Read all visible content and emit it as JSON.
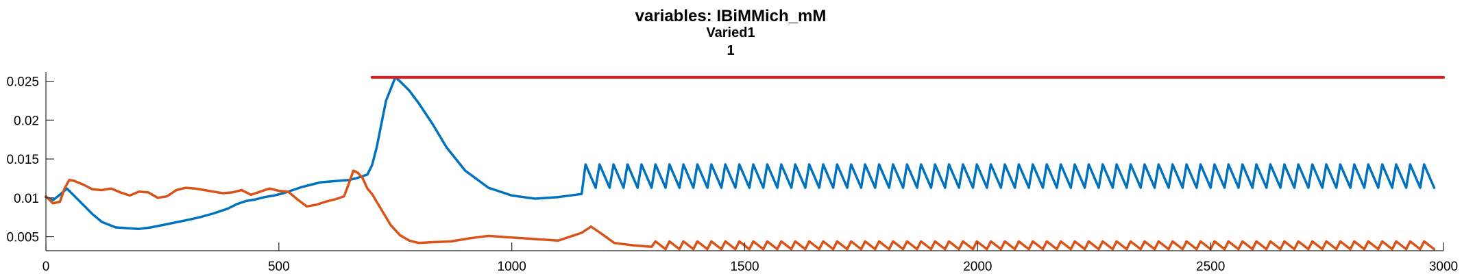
{
  "chart_data": {
    "type": "line",
    "title": "variables: IBiMMich_mM",
    "subtitle_lines": [
      "Varied1",
      "1"
    ],
    "xlabel": "",
    "ylabel": "",
    "xlim": [
      0,
      3000
    ],
    "ylim": [
      0.0032,
      0.0262
    ],
    "x_ticks": [
      0,
      500,
      1000,
      1500,
      2000,
      2500,
      3000
    ],
    "x_tick_labels": [
      "0",
      "500",
      "1000",
      "1500",
      "2000",
      "2500",
      "3000"
    ],
    "y_ticks": [
      0.005,
      0.01,
      0.015,
      0.02,
      0.025
    ],
    "y_tick_labels": [
      "0.005",
      "0.01",
      "0.015",
      "0.02",
      "0.025"
    ],
    "grid": false,
    "legend": "none",
    "series": [
      {
        "color": "#0072BD",
        "x": [
          0,
          15,
          30,
          45,
          60,
          80,
          100,
          120,
          150,
          175,
          200,
          225,
          250,
          275,
          300,
          330,
          360,
          390,
          410,
          430,
          450,
          470,
          490,
          510,
          530,
          550,
          570,
          590,
          610,
          630,
          650,
          665,
          680,
          690,
          700,
          710,
          720,
          730,
          740,
          750,
          760,
          780,
          800,
          830,
          860,
          900,
          950,
          1000,
          1050,
          1100,
          1150
        ],
        "y": [
          0.0101,
          0.0097,
          0.0104,
          0.0112,
          0.0103,
          0.0091,
          0.0079,
          0.0069,
          0.0062,
          0.0061,
          0.006,
          0.0062,
          0.0065,
          0.0068,
          0.0071,
          0.0075,
          0.008,
          0.0086,
          0.0092,
          0.0096,
          0.0098,
          0.0101,
          0.0103,
          0.0106,
          0.011,
          0.0114,
          0.0117,
          0.012,
          0.0121,
          0.0122,
          0.0123,
          0.0125,
          0.0128,
          0.013,
          0.0142,
          0.0165,
          0.0195,
          0.0225,
          0.024,
          0.0255,
          0.025,
          0.0238,
          0.0222,
          0.0195,
          0.0165,
          0.0135,
          0.0113,
          0.0103,
          0.0099,
          0.0101,
          0.0105
        ],
        "periodic_segment": {
          "x_start": 1150,
          "x_end": 3000,
          "period": 30,
          "trough": 0.0113,
          "peak": 0.0143
        }
      },
      {
        "color": "#D95319",
        "x": [
          0,
          15,
          30,
          40,
          50,
          60,
          80,
          100,
          120,
          140,
          160,
          180,
          200,
          220,
          240,
          260,
          280,
          300,
          320,
          340,
          360,
          380,
          400,
          420,
          440,
          460,
          480,
          500,
          520,
          540,
          560,
          580,
          600,
          620,
          640,
          650,
          660,
          670,
          680,
          690,
          700,
          720,
          740,
          760,
          780,
          800,
          830,
          870,
          910,
          950,
          1000,
          1050,
          1100,
          1150,
          1170,
          1190,
          1220,
          1260,
          1300
        ],
        "y": [
          0.0102,
          0.0093,
          0.0095,
          0.0112,
          0.0123,
          0.0122,
          0.0117,
          0.0111,
          0.011,
          0.0112,
          0.0107,
          0.0103,
          0.0108,
          0.0107,
          0.01,
          0.0102,
          0.011,
          0.0113,
          0.0112,
          0.011,
          0.0108,
          0.0106,
          0.0107,
          0.011,
          0.0104,
          0.0108,
          0.0112,
          0.0109,
          0.0108,
          0.0098,
          0.0089,
          0.0091,
          0.0095,
          0.0098,
          0.0102,
          0.0118,
          0.0135,
          0.0132,
          0.0125,
          0.0112,
          0.0105,
          0.0085,
          0.0065,
          0.0052,
          0.0045,
          0.0042,
          0.0043,
          0.0044,
          0.0048,
          0.0051,
          0.0049,
          0.0047,
          0.0045,
          0.0055,
          0.0063,
          0.0055,
          0.0042,
          0.0039,
          0.0037
        ],
        "periodic_segment": {
          "x_start": 1300,
          "x_end": 3000,
          "period": 30,
          "trough": 0.0034,
          "peak": 0.0044
        }
      },
      {
        "color": "#E41A1C",
        "x": [
          700,
          3000
        ],
        "y": [
          0.0255,
          0.0255
        ]
      }
    ]
  }
}
